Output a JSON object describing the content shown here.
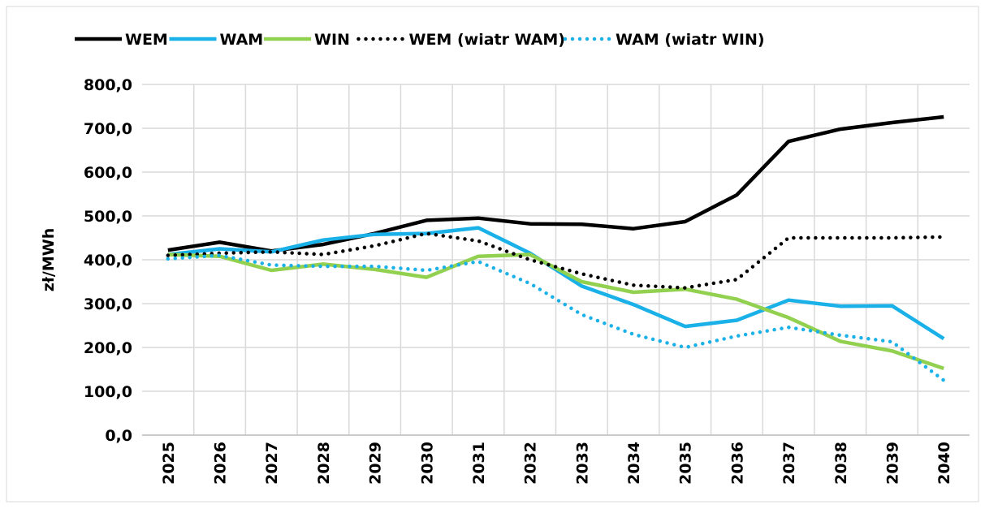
{
  "chart_data": {
    "type": "line",
    "y_label": "zł/MWh",
    "categories": [
      "2025",
      "2026",
      "2027",
      "2028",
      "2029",
      "2030",
      "2031",
      "2032",
      "2033",
      "2034",
      "2035",
      "2036",
      "2037",
      "2038",
      "2039",
      "2040"
    ],
    "series": [
      {
        "name": "WEM",
        "color": "#000000",
        "dash": "solid",
        "values": [
          422,
          440,
          420,
          435,
          460,
          490,
          495,
          482,
          481,
          471,
          487,
          548,
          670,
          698,
          713,
          726
        ]
      },
      {
        "name": "WAM",
        "color": "#1ab0e8",
        "dash": "solid",
        "values": [
          412,
          425,
          418,
          445,
          458,
          460,
          473,
          415,
          340,
          298,
          248,
          262,
          308,
          294,
          295,
          220
        ]
      },
      {
        "name": "WIN",
        "color": "#92d050",
        "dash": "solid",
        "values": [
          412,
          408,
          376,
          390,
          378,
          360,
          408,
          412,
          350,
          326,
          333,
          310,
          268,
          214,
          192,
          152
        ]
      },
      {
        "name": "WEM (wiatr WAM)",
        "color": "#000000",
        "dash": "dotted",
        "values": [
          410,
          415,
          418,
          412,
          432,
          460,
          443,
          400,
          368,
          342,
          336,
          355,
          450,
          450,
          450,
          452
        ]
      },
      {
        "name": "WAM (wiatr WIN)",
        "color": "#1ab0e8",
        "dash": "dotted",
        "values": [
          402,
          410,
          388,
          385,
          385,
          376,
          396,
          346,
          275,
          230,
          200,
          226,
          246,
          228,
          213,
          125
        ]
      }
    ],
    "ylim": [
      0,
      800
    ],
    "yticks": [
      {
        "value": 0,
        "label": "0,0"
      },
      {
        "value": 100,
        "label": "100,0"
      },
      {
        "value": 200,
        "label": "200,0"
      },
      {
        "value": 300,
        "label": "300,0"
      },
      {
        "value": 400,
        "label": "400,0"
      },
      {
        "value": 500,
        "label": "500,0"
      },
      {
        "value": 600,
        "label": "600,0"
      },
      {
        "value": 700,
        "label": "700,0"
      },
      {
        "value": 800,
        "label": "800,0"
      }
    ],
    "grid": true,
    "legend": "top"
  }
}
